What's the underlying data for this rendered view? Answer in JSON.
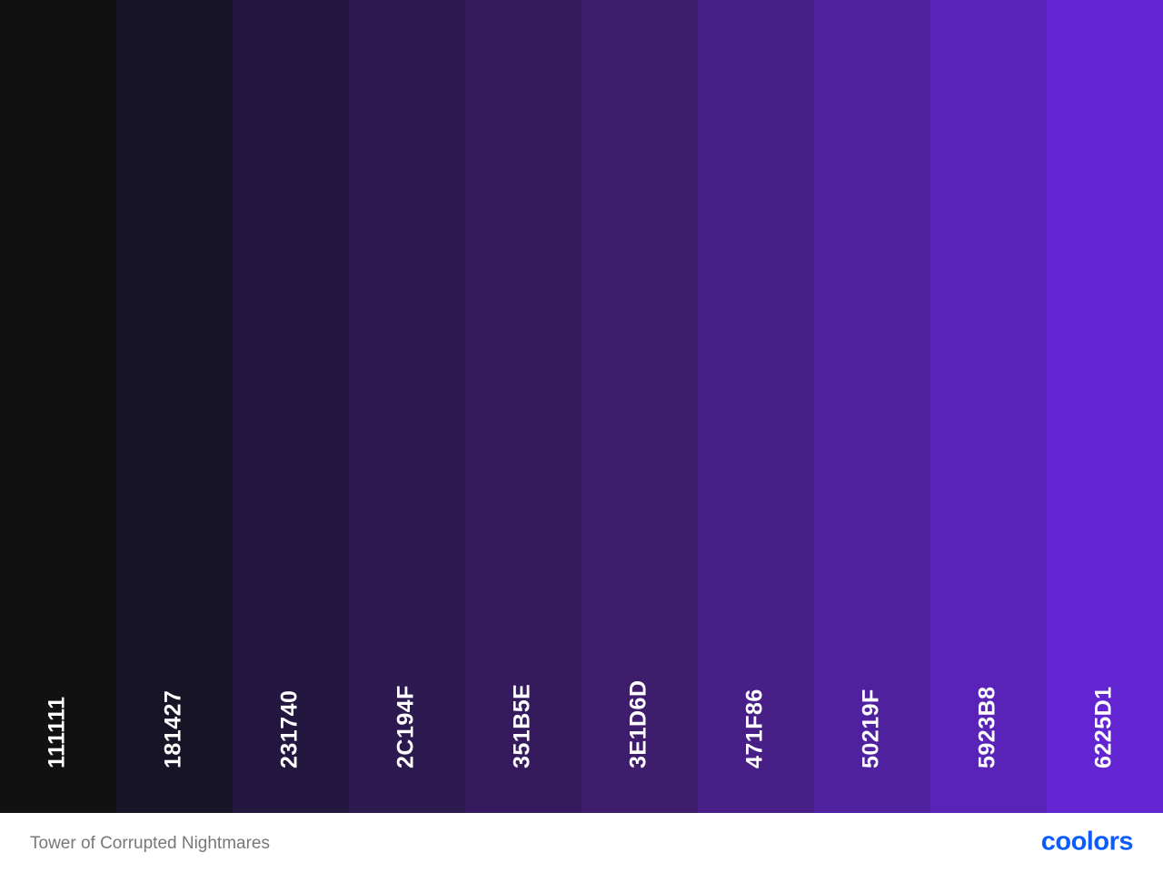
{
  "palette": {
    "swatches": [
      {
        "label": "111111",
        "color": "#111111"
      },
      {
        "label": "181427",
        "color": "#181427"
      },
      {
        "label": "231740",
        "color": "#231740"
      },
      {
        "label": "2C194F",
        "color": "#2C194F"
      },
      {
        "label": "351B5E",
        "color": "#351B5E"
      },
      {
        "label": "3E1D6D",
        "color": "#3E1D6D"
      },
      {
        "label": "471F86",
        "color": "#471F86"
      },
      {
        "label": "50219F",
        "color": "#50219F"
      },
      {
        "label": "5923B8",
        "color": "#5923B8"
      },
      {
        "label": "6225D1",
        "color": "#6225D1"
      }
    ]
  },
  "footer": {
    "title": "Tower of Corrupted Nightmares",
    "logo": "coolors"
  }
}
